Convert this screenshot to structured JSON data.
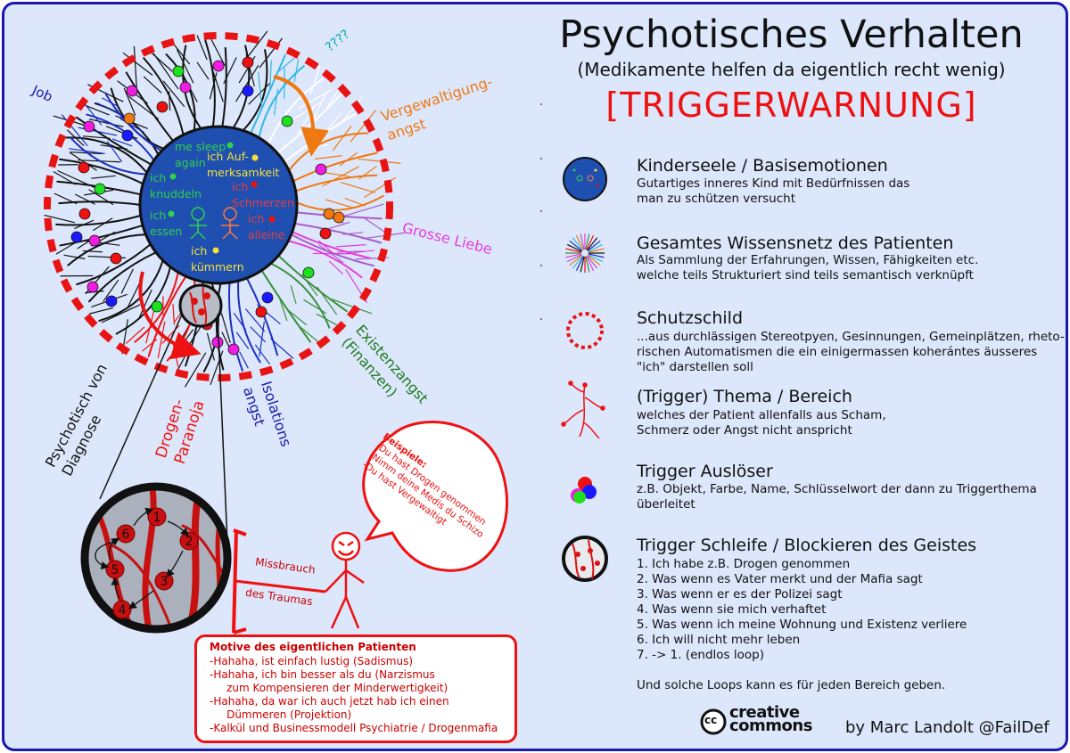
{
  "header": {
    "title": "Psychotisches Verhalten",
    "subtitle": "(Medikamente helfen da eigentlich recht wenig)",
    "warning": "[TRIGGERWARNUNG]"
  },
  "diagram": {
    "question": "????",
    "branch_labels": {
      "job": "Job",
      "vergewaltigung": "Vergewaltigung-\nangst",
      "grosse_liebe": "Grosse Liebe",
      "existenz": "Existenzangst\n(Finanzen)",
      "isolation": "Isolations\nangst",
      "drogen": "Drogen-\nParanoja",
      "psychotisch": "Psychotisch von\nDiagnose"
    },
    "inner_needs": {
      "sleep": "me sleep\nagain",
      "aufmerksamkeit": "ich Auf-\nmerksamkeit",
      "knuddeln": "ich\nknuddeln",
      "schmerzen": "ich\nSchmerzen",
      "essen": "ich\nessen",
      "alleine": "ich\nalleine",
      "kuemmern": "ich\nkümmern"
    },
    "loop_nodes": [
      "1",
      "2",
      "3",
      "4",
      "5",
      "6"
    ],
    "abuse_label_1": "Missbrauch",
    "abuse_label_2": "des Traumas",
    "speech": {
      "head": "Beispiele:",
      "line1": "-Du hast Drogen genommen",
      "line2": "-Nimm deine Medis du Schizo",
      "line3": "-Du hast Vergewaltigt"
    }
  },
  "motives": {
    "heading": "Motive des eigentlichen Patienten",
    "lines": [
      "-Hahaha, ist einfach lustig (Sadismus)",
      "-Hahaha, ich bin besser als du (Narzismus",
      "     zum Kompensieren der Minderwertigkeit)",
      "-Hahaha, da war ich auch jetzt hab ich einen",
      "     Dümmeren (Projektion)",
      "-Kalkül und Businessmodell Psychiatrie / Drogenmafia"
    ]
  },
  "legend": [
    {
      "title": "Kinderseele / Basisemotionen",
      "desc": "Gutartiges inneres Kind mit Bedürfnissen das\nman zu schützen versucht",
      "icon": "inner-child-icon"
    },
    {
      "title": "Gesamtes Wissensnetz des Patienten",
      "desc": "Als Sammlung der Erfahrungen, Wissen, Fähigkeiten etc.\nwelche teils Strukturiert sind teils semantisch verknüpft",
      "icon": "knowledge-net-icon"
    },
    {
      "title": "Schutzschild",
      "desc": "...aus durchlässigen Stereotpyen, Gesinnungen, Gemeinplätzen, rheto-\nrischen Automatismen die ein einigermassen koherántes äusseres\n\"ich\" darstellen soll",
      "icon": "shield-ring-icon"
    },
    {
      "title": "(Trigger) Thema / Bereich",
      "desc": "welches der Patient allenfalls aus Scham,\nSchmerz oder Angst nicht anspricht",
      "icon": "trigger-branch-icon"
    },
    {
      "title": "Trigger Auslöser",
      "desc": "z.B. Objekt, Farbe, Name, Schlüsselwort der dann zu Triggerthema\nüberleitet",
      "icon": "trigger-dots-icon"
    },
    {
      "title": "Trigger Schleife / Blockieren des Geistes",
      "desc": "1. Ich habe z.B. Drogen genommen\n2. Was wenn es Vater merkt und der Mafia sagt\n3. Was wenn er es der Polizei sagt\n4. Was wenn sie mich verhaftet\n5. Was wenn ich meine Wohnung und Existenz verliere\n6. Ich will nicht mehr leben\n7. -> 1. (endlos loop)\n\nUnd solche Loops kann es für jeden Bereich geben.",
      "icon": "trigger-loop-icon"
    }
  ],
  "footer": {
    "cc_line1": "creative",
    "cc_line2": "commons",
    "cc_badge": "cc",
    "credit": "by Marc Landolt @FailDef"
  },
  "colors": {
    "frame": "#1a1aa8",
    "background": "#dce7fb",
    "core": "#1f4fb0",
    "warning": "#e11111"
  }
}
